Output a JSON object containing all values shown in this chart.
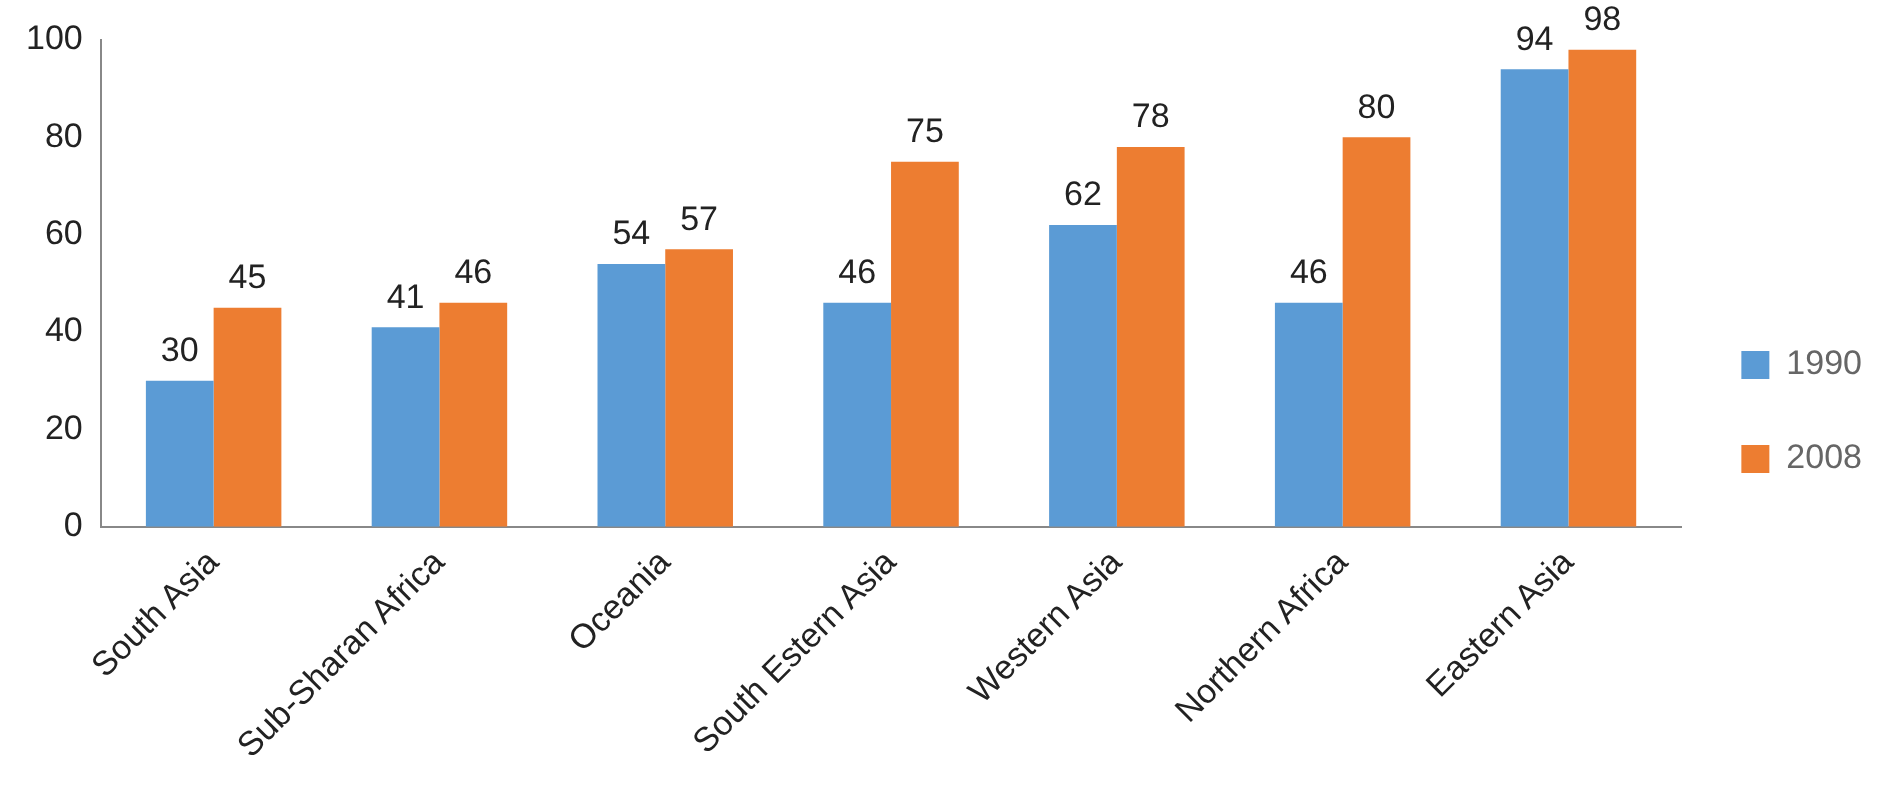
{
  "chart_data": {
    "type": "bar",
    "categories": [
      "South Asia",
      "Sub-Sharan Africa",
      "Oceania",
      "South Estern Asia",
      "Western Asia",
      "Northern Africa",
      "Eastern Asia"
    ],
    "series": [
      {
        "name": "1990",
        "color": "#5b9bd5",
        "values": [
          30,
          41,
          54,
          46,
          62,
          46,
          94
        ]
      },
      {
        "name": "2008",
        "color": "#ed7d31",
        "values": [
          45,
          46,
          57,
          75,
          78,
          80,
          98
        ]
      }
    ],
    "ylim": [
      0,
      100
    ],
    "yticks": [
      0,
      20,
      40,
      60,
      80,
      100
    ],
    "grid": false,
    "legend": "right",
    "data_labels": true
  }
}
